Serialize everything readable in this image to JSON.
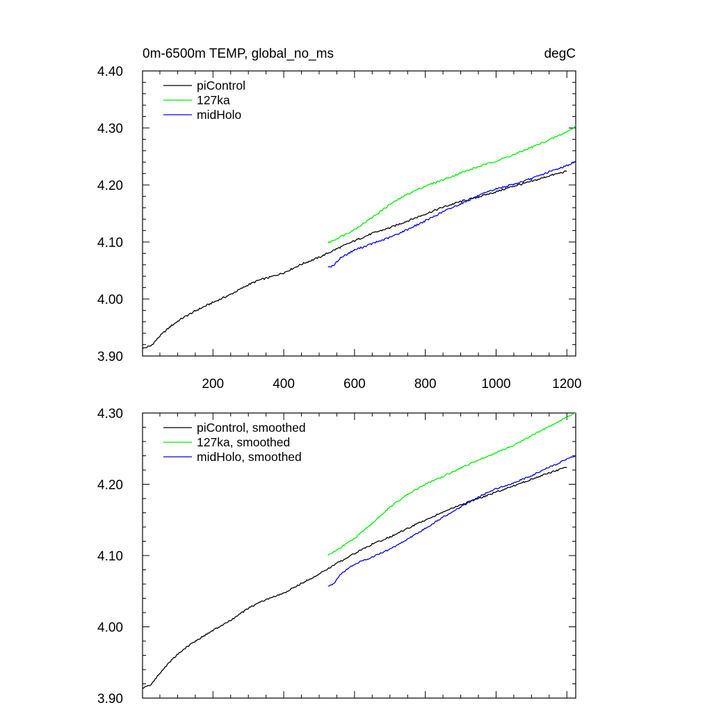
{
  "chart_data": [
    {
      "type": "line",
      "title_left": "0m-6500m TEMP, global_no_ms",
      "title_right": "degC",
      "xlabel": "",
      "ylabel": "",
      "xlim": [
        1,
        1225
      ],
      "ylim": [
        3.9,
        4.4
      ],
      "yticks": [
        "3.90",
        "4.00",
        "4.10",
        "4.20",
        "4.30",
        "4.40"
      ],
      "xticks": [
        "200",
        "400",
        "600",
        "800",
        "1000",
        "1200"
      ],
      "grid": false,
      "legend_position": "top-left",
      "series": [
        {
          "name": "piControl",
          "color": "#000000",
          "x": [
            1,
            25,
            50,
            80,
            110,
            150,
            200,
            250,
            300,
            330,
            360,
            400,
            450,
            500,
            550,
            600,
            650,
            700,
            750,
            800,
            850,
            900,
            950,
            1000,
            1050,
            1100,
            1150,
            1200
          ],
          "y": [
            3.913,
            3.918,
            3.935,
            3.952,
            3.965,
            3.979,
            3.994,
            4.008,
            4.025,
            4.033,
            4.038,
            4.046,
            4.061,
            4.073,
            4.088,
            4.102,
            4.115,
            4.125,
            4.137,
            4.149,
            4.161,
            4.171,
            4.179,
            4.188,
            4.198,
            4.206,
            4.216,
            4.224
          ]
        },
        {
          "name": "127ka",
          "color": "#00ee00",
          "x": [
            525,
            550,
            600,
            650,
            700,
            750,
            800,
            850,
            900,
            950,
            1000,
            1050,
            1100,
            1150,
            1200,
            1225
          ],
          "y": [
            4.098,
            4.106,
            4.122,
            4.143,
            4.166,
            4.184,
            4.198,
            4.209,
            4.221,
            4.232,
            4.242,
            4.253,
            4.266,
            4.279,
            4.293,
            4.303
          ]
        },
        {
          "name": "midHolo",
          "color": "#0000ee",
          "x": [
            525,
            540,
            560,
            600,
            650,
            700,
            750,
            800,
            850,
            900,
            950,
            1000,
            1050,
            1100,
            1150,
            1200,
            1225
          ],
          "y": [
            4.056,
            4.058,
            4.072,
            4.086,
            4.097,
            4.108,
            4.122,
            4.137,
            4.153,
            4.167,
            4.181,
            4.193,
            4.201,
            4.211,
            4.223,
            4.234,
            4.241
          ]
        }
      ]
    },
    {
      "type": "line",
      "title_left": "",
      "title_right": "",
      "xlabel": "",
      "ylabel": "",
      "xlim": [
        1,
        1225
      ],
      "ylim": [
        3.9,
        4.3
      ],
      "yticks": [
        "3.90",
        "4.00",
        "4.10",
        "4.20",
        "4.30"
      ],
      "xticks": [],
      "grid": false,
      "legend_position": "top-left",
      "series": [
        {
          "name": "piControl, smoothed",
          "color": "#000000",
          "x": [
            1,
            25,
            50,
            80,
            110,
            150,
            200,
            250,
            300,
            330,
            360,
            400,
            450,
            500,
            550,
            600,
            650,
            700,
            750,
            800,
            850,
            900,
            950,
            1000,
            1050,
            1100,
            1150,
            1200
          ],
          "y": [
            3.914,
            3.919,
            3.935,
            3.952,
            3.966,
            3.98,
            3.995,
            4.009,
            4.026,
            4.034,
            4.04,
            4.047,
            4.061,
            4.074,
            4.089,
            4.103,
            4.116,
            4.126,
            4.138,
            4.15,
            4.161,
            4.171,
            4.18,
            4.189,
            4.198,
            4.207,
            4.216,
            4.224
          ]
        },
        {
          "name": "127ka, smoothed",
          "color": "#00ee00",
          "x": [
            525,
            550,
            600,
            650,
            700,
            750,
            800,
            850,
            900,
            950,
            1000,
            1050,
            1100,
            1150,
            1200,
            1225
          ],
          "y": [
            4.1,
            4.108,
            4.124,
            4.145,
            4.168,
            4.186,
            4.2,
            4.211,
            4.223,
            4.234,
            4.244,
            4.255,
            4.268,
            4.281,
            4.294,
            4.301
          ]
        },
        {
          "name": "midHolo, smoothed",
          "color": "#0000ee",
          "x": [
            525,
            540,
            560,
            600,
            650,
            700,
            750,
            800,
            850,
            900,
            950,
            1000,
            1050,
            1100,
            1150,
            1200,
            1225
          ],
          "y": [
            4.057,
            4.06,
            4.074,
            4.088,
            4.098,
            4.109,
            4.123,
            4.138,
            4.154,
            4.168,
            4.182,
            4.194,
            4.202,
            4.212,
            4.224,
            4.235,
            4.24
          ]
        }
      ]
    }
  ]
}
